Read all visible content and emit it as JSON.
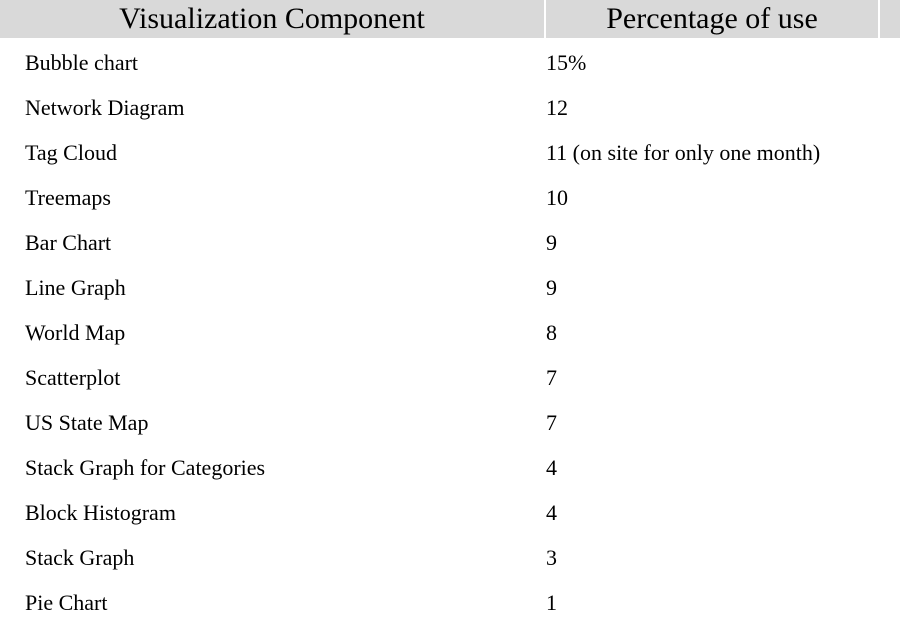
{
  "table": {
    "headers": [
      "Visualization Component",
      "Percentage of use"
    ],
    "rows": [
      {
        "component": "Bubble chart",
        "percentage": "15%"
      },
      {
        "component": "Network Diagram",
        "percentage": "12"
      },
      {
        "component": "Tag Cloud",
        "percentage": "11 (on site for only one month)"
      },
      {
        "component": "Treemaps",
        "percentage": "10"
      },
      {
        "component": "Bar Chart",
        "percentage": "9"
      },
      {
        "component": "Line Graph",
        "percentage": "9"
      },
      {
        "component": "World Map",
        "percentage": "8"
      },
      {
        "component": "Scatterplot",
        "percentage": "7"
      },
      {
        "component": "US State Map",
        "percentage": "7"
      },
      {
        "component": "Stack Graph for Categories",
        "percentage": "4"
      },
      {
        "component": "Block Histogram",
        "percentage": "4"
      },
      {
        "component": "Stack Graph",
        "percentage": "3"
      },
      {
        "component": "Pie Chart",
        "percentage": "1"
      }
    ]
  },
  "colors": {
    "header_background": "#d9d9d9",
    "text": "#000000",
    "background": "#ffffff"
  }
}
